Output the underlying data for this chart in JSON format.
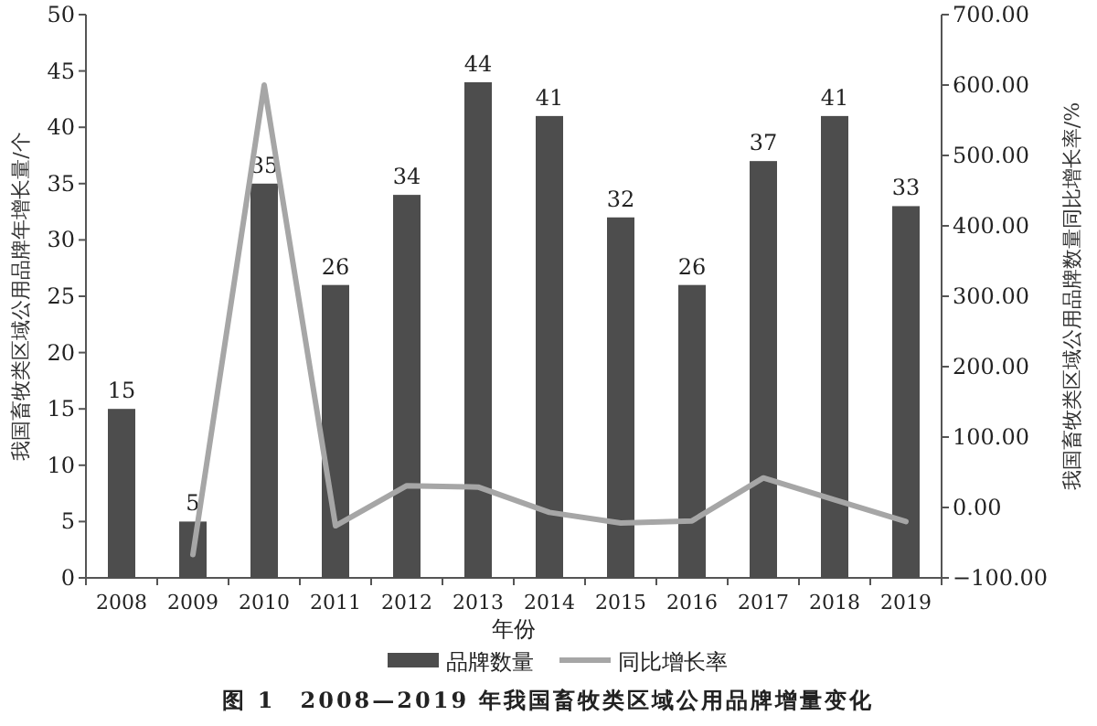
{
  "chart_data": {
    "type": "bar",
    "title": "图 1　2008—2019 年我国畜牧类区域公用品牌增量变化",
    "xlabel": "年份",
    "ylabel": "我国畜牧类区域公用品牌年增长量/个",
    "y2label": "我国畜牧类区域公用品牌数量同比增长率/%",
    "categories": [
      "2008",
      "2009",
      "2010",
      "2011",
      "2012",
      "2013",
      "2014",
      "2015",
      "2016",
      "2017",
      "2018",
      "2019"
    ],
    "series": [
      {
        "name": "品牌数量",
        "color": "#4d4d4d",
        "values": [
          15,
          5,
          35,
          26,
          34,
          44,
          41,
          32,
          26,
          37,
          41,
          33
        ],
        "value_labels": [
          "15",
          "5",
          "35",
          "26",
          "34",
          "44",
          "41",
          "32",
          "26",
          "37",
          "41",
          "33"
        ]
      },
      {
        "name": "同比增长率",
        "type": "line",
        "axis": "y2",
        "color": "#a6a6a6",
        "marker": "none",
        "values": [
          null,
          -67,
          600,
          -26,
          31,
          29,
          -7,
          -22,
          -19,
          42,
          11,
          -20
        ]
      }
    ],
    "ylim": [
      0,
      50
    ],
    "yticks": [
      0,
      5,
      10,
      15,
      20,
      25,
      30,
      35,
      40,
      45,
      50
    ],
    "y2lim": [
      -100,
      700
    ],
    "y2ticks": [
      {
        "value": -100,
        "label": "−100.00"
      },
      {
        "value": 0,
        "label": "0.00"
      },
      {
        "value": 100,
        "label": "100.00"
      },
      {
        "value": 200,
        "label": "200.00"
      },
      {
        "value": 300,
        "label": "300.00"
      },
      {
        "value": 400,
        "label": "400.00"
      },
      {
        "value": 500,
        "label": "500.00"
      },
      {
        "value": 600,
        "label": "600.00"
      },
      {
        "value": 700,
        "label": "700.00"
      }
    ],
    "grid": false,
    "legend": "bottom"
  }
}
